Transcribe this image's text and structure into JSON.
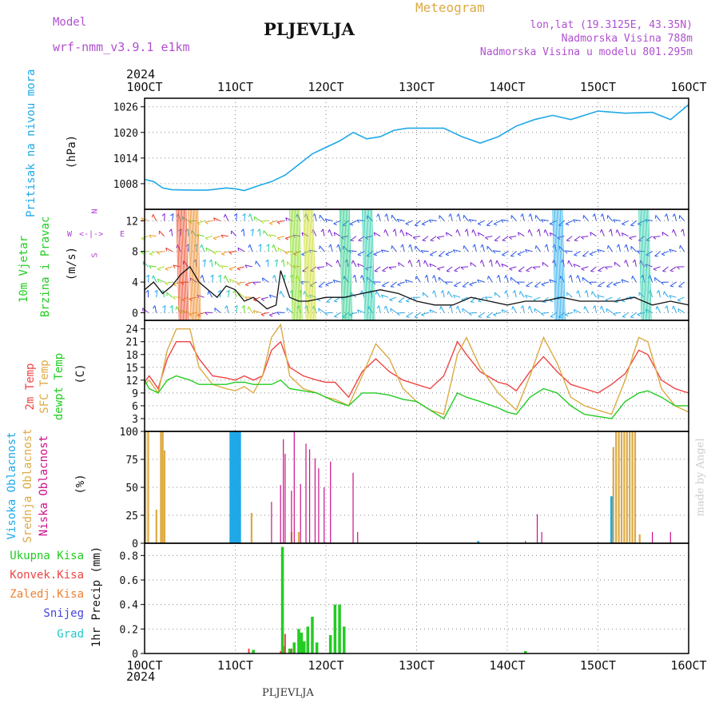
{
  "header": {
    "model_label": "Model",
    "model_name": "wrf-nmm_v3.9.1 e1km",
    "station": "PLJEVLJA",
    "meteogram": "Meteogram",
    "lonlat": "lon,lat (19.3125E, 43.35N)",
    "elevation": "Nadmorska Visina 788m",
    "model_elevation": "Nadmorska Visina u modelu 801.295m"
  },
  "footer": {
    "station": "PLJEVLJA",
    "watermark": "made by Angel"
  },
  "time_axis": {
    "year": "2024",
    "labels": [
      "10OCT",
      "11OCT",
      "12OCT",
      "13OCT",
      "14OCT",
      "15OCT",
      "16OCT"
    ]
  },
  "colors": {
    "pressure": "#1fa8e8",
    "wind_label": "#22cc22",
    "wind_dir": "#b040d0",
    "t2m": "#ee4444",
    "sfc": "#dcaa44",
    "dewpt": "#22cc22",
    "high_cloud": "#1fa8e8",
    "mid_cloud": "#dcaa44",
    "low_cloud": "#cc1188",
    "precip_total": "#22cc22",
    "precip_conv": "#ee4444",
    "precip_frozen": "#f08030",
    "snow": "#4444dd",
    "hail": "#22c8c8"
  },
  "panels": {
    "pressure": {
      "label_color": "Pritisak na nivou mora",
      "unit": "(hPa)",
      "ticks": [
        "1008",
        "1014",
        "1020",
        "1026"
      ]
    },
    "wind": {
      "label1": "10m Vjetar",
      "label2": "Brzina i Pravac",
      "unit": "(m/s)",
      "ticks": [
        "0",
        "4",
        "8",
        "12"
      ],
      "compass_w": "W",
      "compass_e": "E",
      "compass_n": "N",
      "compass_s": "S"
    },
    "temp": {
      "label1": "2m Temp",
      "label2": "SFC Temp",
      "label3": "dewpt Temp",
      "unit": "(C)",
      "ticks": [
        "3",
        "6",
        "9",
        "12",
        "15",
        "18",
        "21",
        "24"
      ]
    },
    "cloud": {
      "label1": "Visoka Oblacnost",
      "label2": "Srednja Oblacnost",
      "label3": "Niska Oblacnost",
      "unit": "(%)",
      "ticks": [
        "0",
        "25",
        "50",
        "75",
        "100"
      ]
    },
    "precip": {
      "legend": [
        "Ukupna Kisa",
        "Konvek.Kisa",
        "Zaledj.Kisa",
        "Snijeg",
        "Grad"
      ],
      "unit": "1hr Precip (mm)",
      "ticks": [
        "0",
        "0.2",
        "0.4",
        "0.6",
        "0.8"
      ]
    }
  },
  "chart_data": [
    {
      "type": "line",
      "title": "Pritisak na nivou mora",
      "ylabel": "(hPa)",
      "ylim": [
        1002,
        1028
      ],
      "x_days": [
        0,
        0.1,
        0.2,
        0.3,
        0.5,
        0.7,
        0.9,
        1.0,
        1.1,
        1.25,
        1.4,
        1.55,
        1.7,
        1.85,
        2.0,
        2.15,
        2.3,
        2.45,
        2.6,
        2.75,
        2.9,
        3.1,
        3.3,
        3.5,
        3.7,
        3.9,
        4.1,
        4.3,
        4.5,
        4.7,
        5.0,
        5.3,
        5.6,
        5.8,
        6.0
      ],
      "values": [
        1009,
        1008.5,
        1007,
        1006.6,
        1006.5,
        1006.5,
        1007,
        1006.8,
        1006.4,
        1007.5,
        1008.5,
        1010,
        1012.5,
        1015,
        1016.5,
        1018,
        1020,
        1018.5,
        1019,
        1020.5,
        1021,
        1021,
        1021,
        1019,
        1017.5,
        1019,
        1021.5,
        1023,
        1024,
        1023,
        1025,
        1024.5,
        1024.7,
        1023,
        1026.5
      ]
    },
    {
      "type": "line",
      "title": "10m Vjetar Brzina i Pravac",
      "ylabel": "(m/s)",
      "ylim": [
        -1,
        13.5
      ],
      "x_days": [
        0,
        0.1,
        0.2,
        0.3,
        0.4,
        0.5,
        0.6,
        0.7,
        0.8,
        0.9,
        1.0,
        1.1,
        1.2,
        1.35,
        1.45,
        1.5,
        1.6,
        1.7,
        1.8,
        2.0,
        2.2,
        2.4,
        2.6,
        2.8,
        3.0,
        3.2,
        3.4,
        3.6,
        3.8,
        4.0,
        4.2,
        4.4,
        4.6,
        4.8,
        5.0,
        5.2,
        5.4,
        5.6,
        5.8,
        6.0
      ],
      "values": [
        3,
        4,
        2.5,
        3.5,
        5,
        6,
        4,
        3,
        2,
        3.5,
        3,
        1.5,
        2,
        0.5,
        1,
        5.5,
        2,
        1.5,
        1.5,
        2,
        2,
        2.5,
        3,
        2.5,
        1.5,
        1,
        1,
        2,
        1.5,
        1,
        1.5,
        1.5,
        2,
        1.5,
        1.5,
        1.5,
        2,
        1,
        1.5,
        1
      ]
    },
    {
      "type": "line",
      "title": "2m Temp / SFC Temp / dewpt Temp",
      "ylabel": "(C)",
      "ylim": [
        0,
        26
      ],
      "x_days": [
        0,
        0.05,
        0.15,
        0.25,
        0.35,
        0.5,
        0.6,
        0.75,
        0.9,
        1.0,
        1.1,
        1.2,
        1.3,
        1.4,
        1.5,
        1.6,
        1.75,
        1.9,
        2.0,
        2.1,
        2.25,
        2.4,
        2.55,
        2.7,
        2.85,
        3.0,
        3.15,
        3.3,
        3.45,
        3.55,
        3.7,
        3.9,
        4.0,
        4.1,
        4.25,
        4.4,
        4.55,
        4.7,
        4.85,
        5.0,
        5.15,
        5.3,
        5.45,
        5.55,
        5.7,
        5.85,
        6.0
      ],
      "series": [
        {
          "name": "2m Temp",
          "values": [
            11.5,
            13,
            10,
            17,
            21,
            21,
            17,
            13,
            12.5,
            12,
            13,
            12,
            13,
            19,
            21,
            15,
            13,
            12,
            11.5,
            11.5,
            8,
            14,
            17,
            14,
            12,
            11,
            10,
            13,
            21,
            18,
            14,
            11.5,
            11,
            9.5,
            14,
            17.5,
            14,
            11,
            10,
            9,
            11,
            13.5,
            19,
            18,
            12,
            10,
            9
          ]
        },
        {
          "name": "SFC Temp",
          "values": [
            11,
            12,
            9,
            19,
            24,
            24,
            15,
            11,
            10,
            9.5,
            10.5,
            9,
            13,
            22,
            25,
            13,
            10,
            9,
            8,
            7.5,
            6,
            13,
            20.5,
            17,
            10,
            7,
            5,
            4,
            18,
            22,
            15,
            9,
            7,
            5,
            13,
            22,
            16,
            8,
            6,
            5,
            4,
            12,
            22,
            21,
            10,
            6,
            4.5
          ]
        },
        {
          "name": "dewpt Temp",
          "values": [
            12,
            10,
            9,
            12,
            13,
            12,
            11,
            11,
            11,
            11.5,
            11.5,
            11,
            11,
            11,
            12,
            10,
            9.5,
            9,
            8,
            7,
            6,
            9,
            9,
            8.5,
            7.5,
            7,
            5,
            3,
            9,
            8,
            7,
            5.5,
            4.5,
            4,
            8,
            10,
            9,
            6,
            4,
            3.5,
            3,
            7,
            9,
            9.5,
            8,
            6,
            6
          ]
        }
      ]
    },
    {
      "type": "bar",
      "title": "Visoka / Srednja / Niska Oblacnost",
      "ylabel": "(%)",
      "ylim": [
        0,
        100
      ],
      "series": [
        {
          "name": "Visoka Oblacnost",
          "x_days": [
            0.95,
            0.97,
            0.99,
            1.01,
            1.03,
            1.05,
            3.68,
            5.15
          ],
          "values": [
            100,
            100,
            100,
            100,
            100,
            100,
            2,
            42
          ]
        },
        {
          "name": "Srednja Oblacnost",
          "x_days": [
            0.01,
            0.04,
            0.13,
            0.18,
            0.2,
            0.22,
            1.18,
            1.62,
            1.7,
            5.17,
            5.2,
            5.23,
            5.26,
            5.29,
            5.32,
            5.35,
            5.38,
            5.41,
            5.46
          ],
          "values": [
            100,
            100,
            30,
            100,
            100,
            83,
            27,
            10,
            10,
            86,
            100,
            100,
            100,
            100,
            100,
            100,
            100,
            100,
            8
          ]
        },
        {
          "name": "Niska Oblacnost",
          "x_days": [
            1.4,
            1.5,
            1.53,
            1.55,
            1.62,
            1.65,
            1.72,
            1.78,
            1.82,
            1.88,
            1.92,
            1.98,
            2.05,
            2.3,
            2.35,
            4.2,
            4.33,
            4.38,
            5.6,
            5.8
          ],
          "values": [
            37,
            52,
            93,
            80,
            47,
            100,
            53,
            89,
            84,
            76,
            67,
            50,
            73,
            63,
            10,
            2,
            26,
            10,
            10,
            10
          ]
        }
      ]
    },
    {
      "type": "bar",
      "title": "1hr Precip",
      "ylabel": "1hr Precip (mm)",
      "ylim": [
        0,
        0.9
      ],
      "series": [
        {
          "name": "Ukupna Kisa",
          "x_days": [
            1.2,
            1.52,
            1.54,
            1.6,
            1.65,
            1.7,
            1.73,
            1.76,
            1.8,
            1.85,
            1.9,
            2.05,
            2.1,
            2.15,
            2.2,
            4.2
          ],
          "values": [
            0.03,
            0.87,
            0.06,
            0.04,
            0.09,
            0.2,
            0.17,
            0.1,
            0.22,
            0.3,
            0.09,
            0.15,
            0.4,
            0.4,
            0.22,
            0.02
          ]
        },
        {
          "name": "Konvek.Kisa",
          "x_days": [
            1.15,
            1.5,
            1.55,
            1.62
          ],
          "values": [
            0.04,
            0.02,
            0.16,
            0.04
          ]
        }
      ]
    }
  ]
}
